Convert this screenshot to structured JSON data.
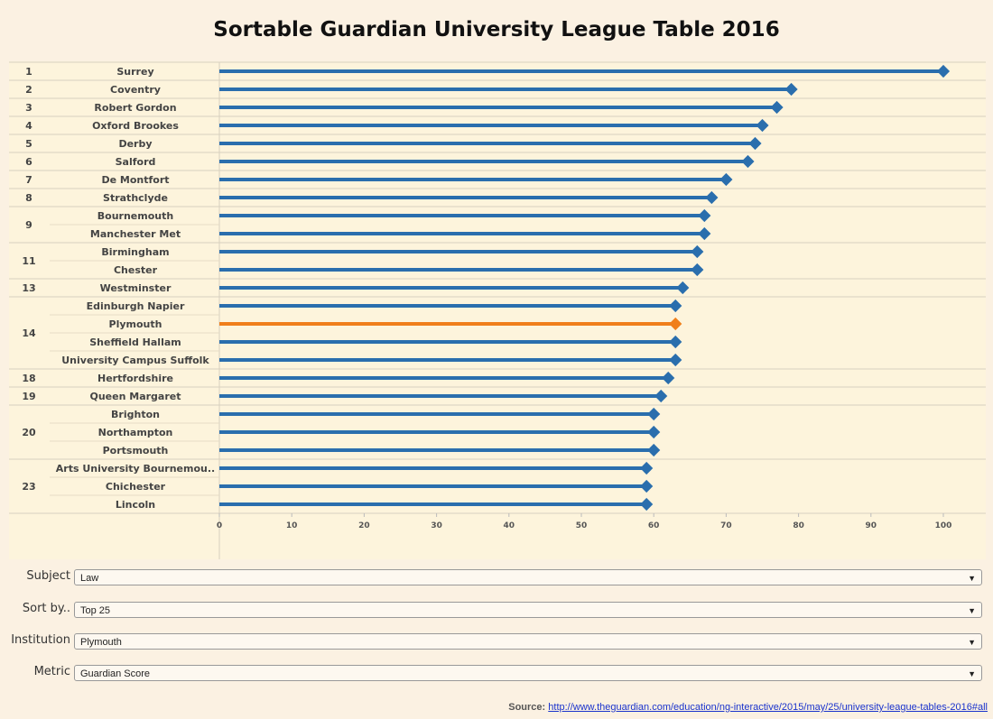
{
  "chart_data": {
    "type": "lollipop",
    "title": "Sortable Guardian University League Table 2016",
    "xlim": [
      0,
      100
    ],
    "xticks": [
      "0",
      "10",
      "20",
      "30",
      "40",
      "50",
      "60",
      "70",
      "80",
      "90",
      "100"
    ],
    "highlight": "Plymouth",
    "colors": {
      "bar": "#2a6ead",
      "highlight": "#f07f1b"
    },
    "rows": [
      {
        "rank": "1",
        "name": "Surrey",
        "value": 100
      },
      {
        "rank": "2",
        "name": "Coventry",
        "value": 79
      },
      {
        "rank": "3",
        "name": "Robert Gordon",
        "value": 77
      },
      {
        "rank": "4",
        "name": "Oxford Brookes",
        "value": 75
      },
      {
        "rank": "5",
        "name": "Derby",
        "value": 74
      },
      {
        "rank": "6",
        "name": "Salford",
        "value": 73
      },
      {
        "rank": "7",
        "name": "De Montfort",
        "value": 70
      },
      {
        "rank": "8",
        "name": "Strathclyde",
        "value": 68
      },
      {
        "rank": "9",
        "name": "Bournemouth",
        "value": 67
      },
      {
        "rank": "9",
        "name": "Manchester Met",
        "value": 67
      },
      {
        "rank": "11",
        "name": "Birmingham",
        "value": 66
      },
      {
        "rank": "11",
        "name": "Chester",
        "value": 66
      },
      {
        "rank": "13",
        "name": "Westminster",
        "value": 64
      },
      {
        "rank": "14",
        "name": "Edinburgh Napier",
        "value": 63
      },
      {
        "rank": "14",
        "name": "Plymouth",
        "value": 63
      },
      {
        "rank": "14",
        "name": "Sheffield Hallam",
        "value": 63
      },
      {
        "rank": "14",
        "name": "University Campus Suffolk",
        "value": 63
      },
      {
        "rank": "18",
        "name": "Hertfordshire",
        "value": 62
      },
      {
        "rank": "19",
        "name": "Queen Margaret",
        "value": 61
      },
      {
        "rank": "20",
        "name": "Brighton",
        "value": 60
      },
      {
        "rank": "20",
        "name": "Northampton",
        "value": 60
      },
      {
        "rank": "20",
        "name": "Portsmouth",
        "value": 60
      },
      {
        "rank": "23",
        "name": "Arts University Bournemou..",
        "value": 59
      },
      {
        "rank": "23",
        "name": "Chichester",
        "value": 59
      },
      {
        "rank": "23",
        "name": "Lincoln",
        "value": 59
      }
    ]
  },
  "controls": {
    "subject": {
      "label": "Subject",
      "value": "Law"
    },
    "sort": {
      "label": "Sort by..",
      "value": "Top 25"
    },
    "institution": {
      "label": "Institution",
      "value": "Plymouth"
    },
    "metric": {
      "label": "Metric",
      "value": "Guardian Score"
    }
  },
  "source": {
    "label": "Source:",
    "url": "http://www.theguardian.com/education/ng-interactive/2015/may/25/university-league-tables-2016#all"
  }
}
